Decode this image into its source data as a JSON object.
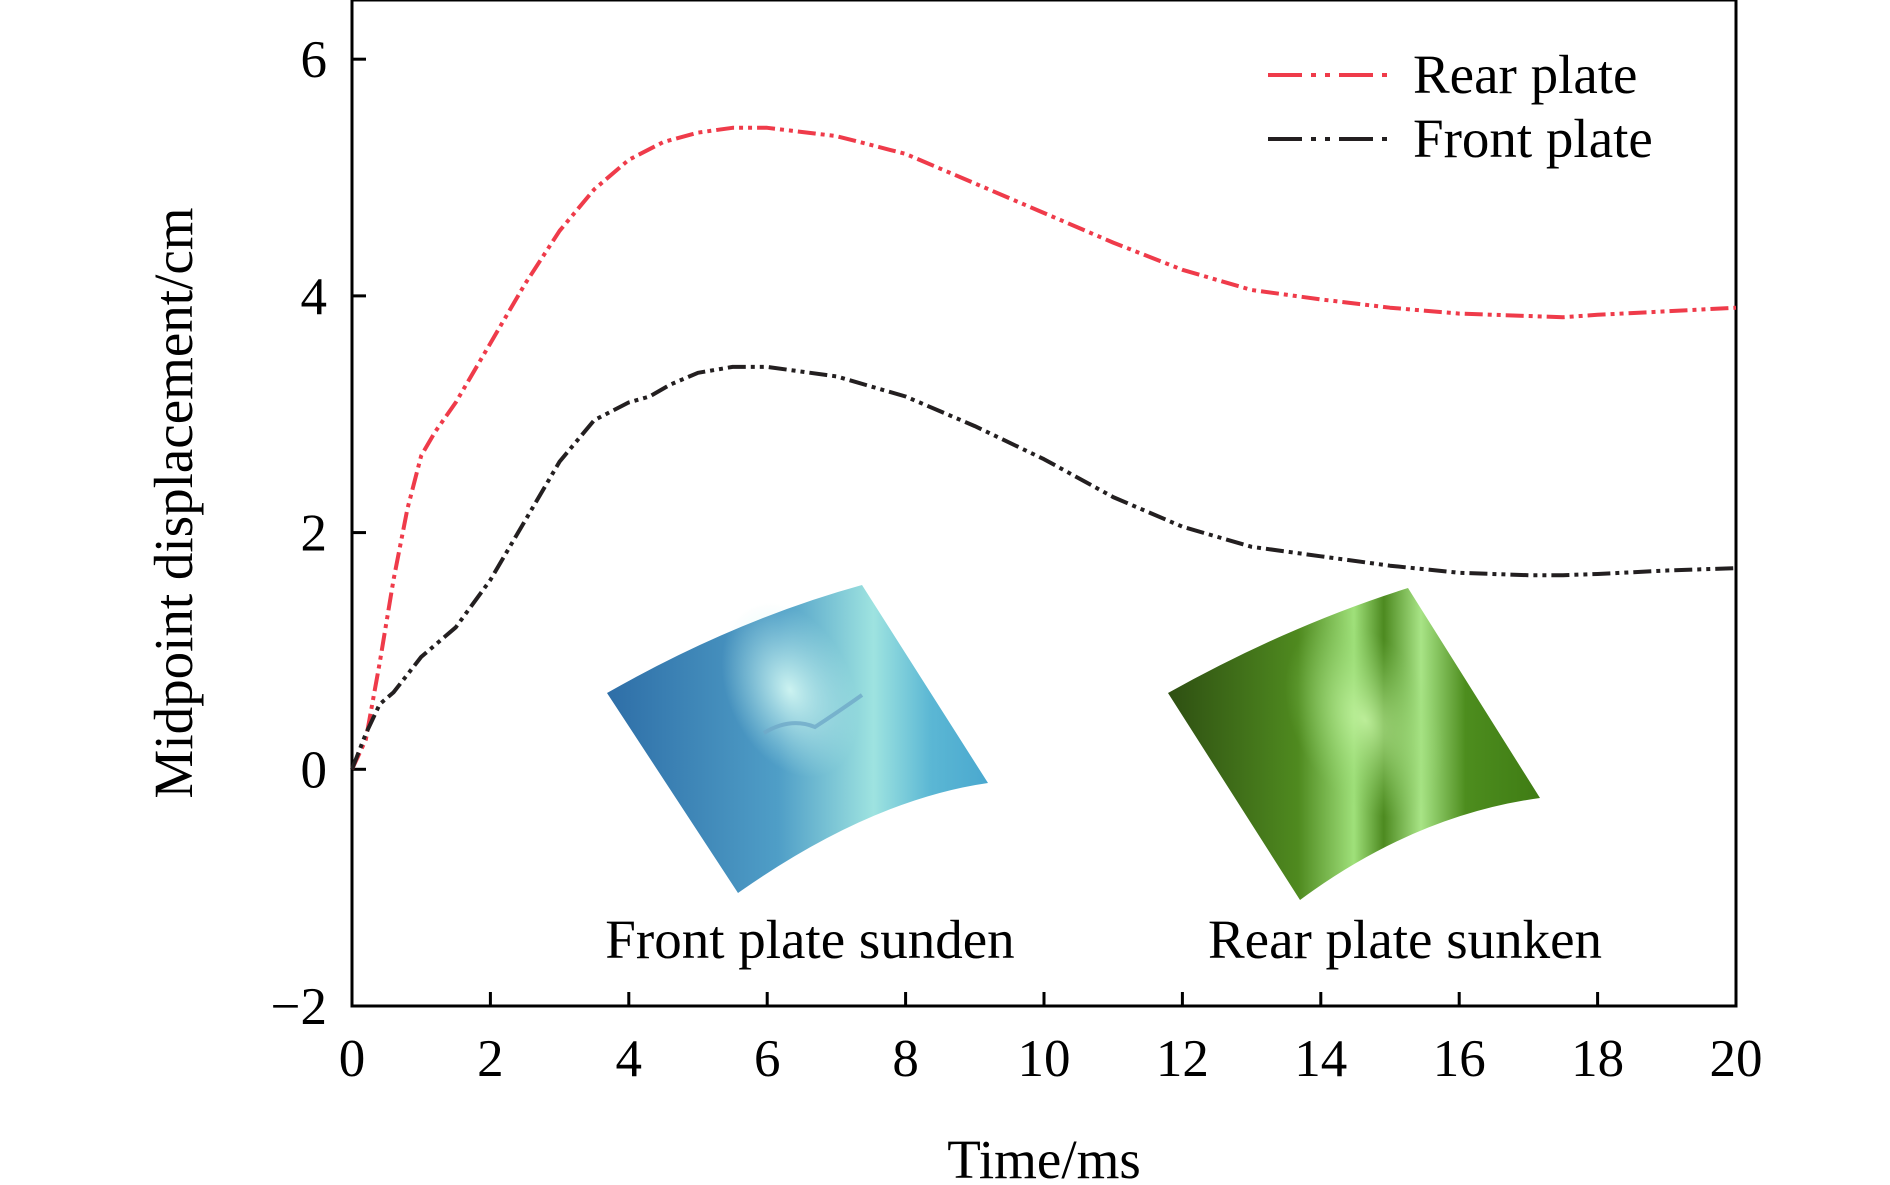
{
  "chart_data": {
    "type": "line",
    "xlabel": "Time/ms",
    "ylabel": "Midpoint displacement/cm",
    "xlim": [
      0,
      20
    ],
    "ylim": [
      -2,
      6.5
    ],
    "xticks": [
      0,
      2,
      4,
      6,
      8,
      10,
      12,
      14,
      16,
      18,
      20
    ],
    "yticks": [
      -2,
      0,
      2,
      4,
      6
    ],
    "xtick_labels": [
      "0",
      "2",
      "4",
      "6",
      "8",
      "10",
      "12",
      "14",
      "16",
      "18",
      "20"
    ],
    "ytick_labels": [
      "−2",
      "0",
      "2",
      "4",
      "6"
    ],
    "grid": false,
    "legend_position": "top-right",
    "series": [
      {
        "name": "Rear plate",
        "color": "#ef3b4a",
        "line_style": "dash-dot-dot",
        "x": [
          0,
          0.2,
          0.4,
          0.6,
          0.8,
          1.0,
          1.2,
          1.5,
          2.0,
          2.5,
          3.0,
          3.5,
          4.0,
          4.5,
          5.0,
          5.5,
          6.0,
          7.0,
          8.0,
          9.0,
          10.0,
          11.0,
          12.0,
          13.0,
          14.0,
          15.0,
          16.0,
          17.0,
          17.5,
          18.0,
          19.0,
          20.0
        ],
        "y": [
          0,
          0.25,
          0.9,
          1.6,
          2.2,
          2.65,
          2.85,
          3.1,
          3.6,
          4.1,
          4.55,
          4.9,
          5.15,
          5.3,
          5.38,
          5.42,
          5.42,
          5.35,
          5.2,
          4.95,
          4.7,
          4.45,
          4.22,
          4.05,
          3.97,
          3.9,
          3.85,
          3.83,
          3.82,
          3.84,
          3.87,
          3.9
        ]
      },
      {
        "name": "Front plate",
        "color": "#231f20",
        "line_style": "dash-dot-dot",
        "x": [
          0,
          0.2,
          0.4,
          0.6,
          0.8,
          1.0,
          1.5,
          2.0,
          2.5,
          3.0,
          3.5,
          4.0,
          4.3,
          4.6,
          5.0,
          5.5,
          6.0,
          7.0,
          8.0,
          9.0,
          10.0,
          11.0,
          12.0,
          13.0,
          14.0,
          15.0,
          16.0,
          17.0,
          17.5,
          18.0,
          19.0,
          20.0
        ],
        "y": [
          0,
          0.3,
          0.55,
          0.65,
          0.8,
          0.95,
          1.2,
          1.6,
          2.1,
          2.6,
          2.95,
          3.1,
          3.15,
          3.25,
          3.35,
          3.4,
          3.4,
          3.32,
          3.15,
          2.9,
          2.62,
          2.3,
          2.05,
          1.88,
          1.8,
          1.72,
          1.66,
          1.64,
          1.64,
          1.65,
          1.68,
          1.7
        ]
      }
    ],
    "annotations": [
      "Front plate sunden",
      "Rear plate sunken"
    ]
  }
}
